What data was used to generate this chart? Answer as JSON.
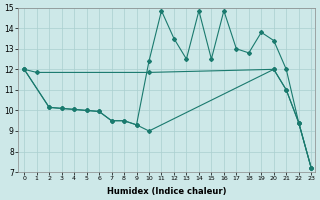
{
  "xlabel": "Humidex (Indice chaleur)",
  "xlim": [
    -0.5,
    23.3
  ],
  "ylim": [
    7,
    15
  ],
  "xticks": [
    0,
    1,
    2,
    3,
    4,
    5,
    6,
    7,
    8,
    9,
    10,
    11,
    12,
    13,
    14,
    15,
    16,
    17,
    18,
    19,
    20,
    21,
    22,
    23
  ],
  "yticks": [
    7,
    8,
    9,
    10,
    11,
    12,
    13,
    14,
    15
  ],
  "bg_color": "#cde8e8",
  "line_color": "#1a7a6e",
  "line1_x": [
    0,
    1,
    10,
    20,
    21,
    22,
    23
  ],
  "line1_y": [
    12.0,
    11.85,
    11.85,
    12.0,
    11.0,
    9.4,
    7.2
  ],
  "line2_x": [
    0,
    2,
    3,
    4,
    5,
    6,
    7,
    8,
    9,
    10,
    20,
    21,
    22,
    23
  ],
  "line2_y": [
    12.0,
    10.15,
    10.1,
    10.05,
    10.0,
    9.95,
    9.5,
    9.5,
    9.3,
    9.0,
    12.0,
    11.0,
    9.4,
    7.2
  ],
  "line3_x": [
    0,
    2,
    3,
    4,
    5,
    6,
    7,
    8,
    9,
    10,
    11,
    12,
    13,
    14,
    15,
    16,
    17,
    18,
    19,
    20,
    21,
    22,
    23
  ],
  "line3_y": [
    12.0,
    10.15,
    10.1,
    10.05,
    10.0,
    9.95,
    9.5,
    9.5,
    9.3,
    12.4,
    14.85,
    13.5,
    12.5,
    14.85,
    12.5,
    14.85,
    13.0,
    12.8,
    13.8,
    13.4,
    12.0,
    9.4,
    7.2
  ]
}
